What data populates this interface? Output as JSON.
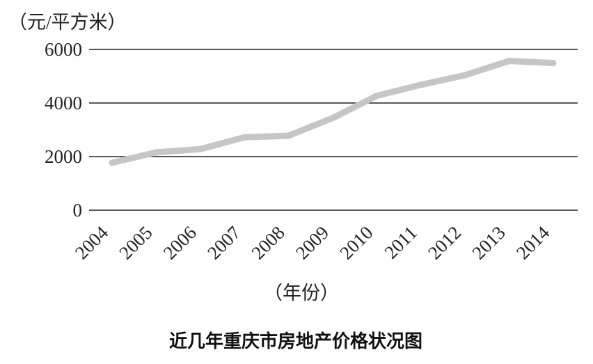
{
  "chart_data": {
    "type": "line",
    "title": "近几年重庆市房地产价格状况图",
    "ylabel": "（元/平方米）",
    "xlabel": "（年份）",
    "categories": [
      "2004",
      "2005",
      "2006",
      "2007",
      "2008",
      "2009",
      "2010",
      "2011",
      "2012",
      "2013",
      "2014"
    ],
    "series": [
      {
        "values": [
          1770,
          2160,
          2280,
          2720,
          2780,
          3440,
          4270,
          4680,
          5040,
          5570,
          5490
        ]
      }
    ],
    "yticks": [
      "0",
      "2000",
      "4000",
      "6000"
    ],
    "ylim": [
      0,
      6000
    ],
    "grid": true,
    "colors": {
      "line": "#c6c6c6",
      "grid": "#222222"
    }
  }
}
